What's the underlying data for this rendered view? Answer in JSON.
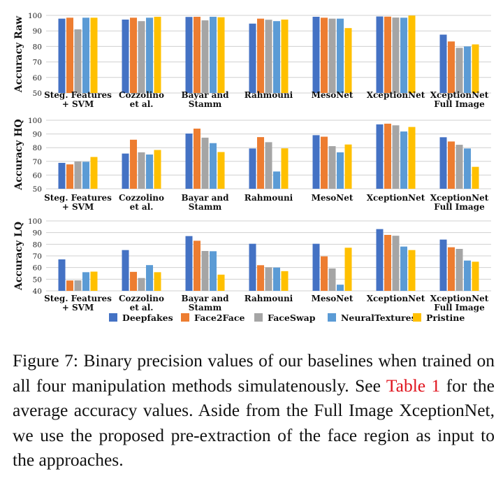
{
  "chart_data": [
    {
      "type": "bar",
      "ylabel": "Accuracy Raw",
      "ylim": [
        50,
        100
      ],
      "yticks": [
        50,
        60,
        70,
        80,
        90,
        100
      ],
      "categories": [
        "Steg. Features\n+ SVM",
        "Cozzolino\net al.",
        "Bayar and\nStamm",
        "Rahmouni",
        "MesoNet",
        "XceptionNet",
        "XceptionNet\nFull Image"
      ],
      "series": [
        {
          "name": "Deepfakes",
          "values": [
            97.9,
            97.3,
            99.0,
            94.7,
            99.1,
            99.3,
            87.6
          ]
        },
        {
          "name": "Face2Face",
          "values": [
            98.5,
            98.5,
            99.1,
            97.9,
            98.5,
            99.2,
            83.2
          ]
        },
        {
          "name": "FaceSwap",
          "values": [
            91.0,
            96.3,
            96.8,
            97.2,
            97.9,
            98.6,
            79.1
          ]
        },
        {
          "name": "NeuralTextures",
          "values": [
            98.5,
            98.5,
            99.1,
            96.3,
            97.9,
            98.5,
            80.0
          ]
        },
        {
          "name": "Pristine",
          "values": [
            98.5,
            99.1,
            98.8,
            97.3,
            91.8,
            99.9,
            81.3
          ]
        }
      ]
    },
    {
      "type": "bar",
      "ylabel": "Accuracy HQ",
      "ylim": [
        50,
        100
      ],
      "yticks": [
        50,
        60,
        70,
        80,
        90,
        100
      ],
      "categories": [
        "Steg. Features\n+ SVM",
        "Cozzolino\net al.",
        "Bayar and\nStamm",
        "Rahmouni",
        "MesoNet",
        "XceptionNet",
        "XceptionNet\nFull Image"
      ],
      "series": [
        {
          "name": "Deepfakes",
          "values": [
            68.9,
            75.7,
            90.3,
            79.4,
            89.1,
            97.0,
            87.6
          ]
        },
        {
          "name": "Face2Face",
          "values": [
            67.8,
            85.8,
            93.9,
            87.7,
            88.0,
            97.5,
            84.5
          ]
        },
        {
          "name": "FaceSwap",
          "values": [
            69.9,
            76.6,
            87.3,
            84.0,
            81.1,
            96.3,
            82.1
          ]
        },
        {
          "name": "NeuralTextures",
          "values": [
            69.7,
            75.0,
            83.3,
            62.6,
            76.6,
            91.8,
            79.4
          ]
        },
        {
          "name": "Pristine",
          "values": [
            73.2,
            78.3,
            76.8,
            79.5,
            82.3,
            95.1,
            66.0
          ]
        }
      ]
    },
    {
      "type": "bar",
      "ylabel": "Accuracy LQ",
      "ylim": [
        40,
        100
      ],
      "yticks": [
        40,
        50,
        60,
        70,
        80,
        90,
        100
      ],
      "categories": [
        "Steg. Features\n+ SVM",
        "Cozzolino\net al.",
        "Bayar and\nStamm",
        "Rahmouni",
        "MesoNet",
        "XceptionNet",
        "XceptionNet\nFull Image"
      ],
      "series": [
        {
          "name": "Deepfakes",
          "values": [
            67.0,
            75.0,
            87.0,
            80.4,
            80.4,
            93.0,
            84.0
          ]
        },
        {
          "name": "Face2Face",
          "values": [
            48.9,
            56.3,
            83.0,
            62.0,
            69.6,
            88.0,
            77.4
          ]
        },
        {
          "name": "FaceSwap",
          "values": [
            49.0,
            51.0,
            74.2,
            60.2,
            59.2,
            87.3,
            76.0
          ]
        },
        {
          "name": "NeuralTextures",
          "values": [
            56.0,
            62.1,
            74.0,
            60.0,
            45.3,
            78.0,
            66.0
          ]
        },
        {
          "name": "Pristine",
          "values": [
            56.5,
            56.0,
            53.9,
            56.9,
            77.0,
            75.0,
            65.0
          ]
        }
      ]
    }
  ],
  "legend": [
    {
      "name": "Deepfakes",
      "color": "#4472c4"
    },
    {
      "name": "Face2Face",
      "color": "#ed7d31"
    },
    {
      "name": "FaceSwap",
      "color": "#a5a5a5"
    },
    {
      "name": "NeuralTextures",
      "color": "#5b9bd5"
    },
    {
      "name": "Pristine",
      "color": "#ffc000"
    }
  ],
  "colors": [
    "#4472c4",
    "#ed7d31",
    "#a5a5a5",
    "#5b9bd5",
    "#ffc000"
  ],
  "caption": {
    "prefix": "Figure 7:  Binary precision values of our baselines when trained on all four manipulation methods simulatenously. See ",
    "ref": "Table 1",
    "suffix": " for the average accuracy values.  Aside from the Full Image XceptionNet, we use the proposed pre-extraction of the face region as input to the approaches."
  }
}
